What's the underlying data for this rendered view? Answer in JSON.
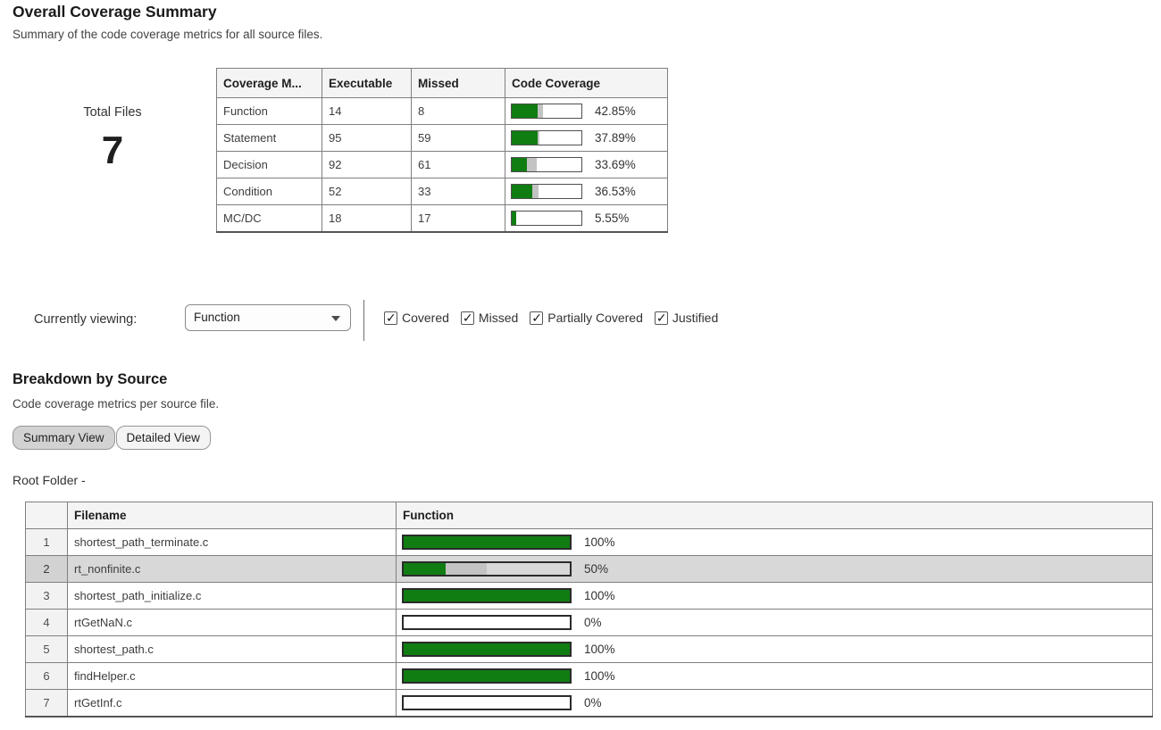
{
  "overall": {
    "title": "Overall Coverage Summary",
    "subtitle": "Summary of the code coverage metrics for all source files.",
    "total_files_label": "Total Files",
    "total_files_value": "7",
    "table": {
      "headers": [
        "Coverage M...",
        "Executable",
        "Missed",
        "Code Coverage"
      ],
      "rows": [
        {
          "metric": "Function",
          "executable": "14",
          "missed": "8",
          "pct_label": "42.85%",
          "green_pct": 37,
          "gray_pct": 8
        },
        {
          "metric": "Statement",
          "executable": "95",
          "missed": "59",
          "pct_label": "37.89%",
          "green_pct": 37,
          "gray_pct": 3
        },
        {
          "metric": "Decision",
          "executable": "92",
          "missed": "61",
          "pct_label": "33.69%",
          "green_pct": 22,
          "gray_pct": 14
        },
        {
          "metric": "Condition",
          "executable": "52",
          "missed": "33",
          "pct_label": "36.53%",
          "green_pct": 30,
          "gray_pct": 9
        },
        {
          "metric": "MC/DC",
          "executable": "18",
          "missed": "17",
          "pct_label": "5.55%",
          "green_pct": 6,
          "gray_pct": 0
        }
      ]
    }
  },
  "filter_bar": {
    "label": "Currently viewing:",
    "dropdown_value": "Function",
    "checkboxes": [
      {
        "label": "Covered",
        "checked": true
      },
      {
        "label": "Missed",
        "checked": true
      },
      {
        "label": "Partially Covered",
        "checked": true
      },
      {
        "label": "Justified",
        "checked": true
      }
    ]
  },
  "breakdown": {
    "title": "Breakdown by Source",
    "subtitle": "Code coverage metrics per source file.",
    "buttons": [
      {
        "label": "Summary View",
        "active": true
      },
      {
        "label": "Detailed View",
        "active": false
      }
    ],
    "root_folder_label": "Root Folder -",
    "table": {
      "headers": [
        "",
        "Filename",
        "Function"
      ],
      "rows": [
        {
          "num": "1",
          "filename": "shortest_path_terminate.c",
          "pct_label": "100%",
          "green_pct": 100,
          "gray_pct": 0,
          "highlighted": false
        },
        {
          "num": "2",
          "filename": "rt_nonfinite.c",
          "pct_label": "50%",
          "green_pct": 25,
          "gray_pct": 25,
          "highlighted": true
        },
        {
          "num": "3",
          "filename": "shortest_path_initialize.c",
          "pct_label": "100%",
          "green_pct": 100,
          "gray_pct": 0,
          "highlighted": false
        },
        {
          "num": "4",
          "filename": "rtGetNaN.c",
          "pct_label": "0%",
          "green_pct": 0,
          "gray_pct": 0,
          "highlighted": false
        },
        {
          "num": "5",
          "filename": "shortest_path.c",
          "pct_label": "100%",
          "green_pct": 100,
          "gray_pct": 0,
          "highlighted": false
        },
        {
          "num": "6",
          "filename": "findHelper.c",
          "pct_label": "100%",
          "green_pct": 100,
          "gray_pct": 0,
          "highlighted": false
        },
        {
          "num": "7",
          "filename": "rtGetInf.c",
          "pct_label": "0%",
          "green_pct": 0,
          "gray_pct": 0,
          "highlighted": false
        }
      ]
    }
  },
  "colors": {
    "covered_green": "#107d12",
    "partial_gray": "#c3c3c3",
    "row_highlight": "#d8d8d8"
  },
  "chart_data": [
    {
      "type": "bar",
      "title": "Overall Coverage Summary",
      "categories": [
        "Function",
        "Statement",
        "Decision",
        "Condition",
        "MC/DC"
      ],
      "series": [
        {
          "name": "Executable",
          "values": [
            14,
            95,
            92,
            52,
            18
          ]
        },
        {
          "name": "Missed",
          "values": [
            8,
            59,
            61,
            33,
            17
          ]
        },
        {
          "name": "Code Coverage %",
          "values": [
            42.85,
            37.89,
            33.69,
            36.53,
            5.55
          ]
        }
      ],
      "xlim": [
        0,
        100
      ]
    },
    {
      "type": "bar",
      "title": "Breakdown by Source - Function Coverage",
      "categories": [
        "shortest_path_terminate.c",
        "rt_nonfinite.c",
        "shortest_path_initialize.c",
        "rtGetNaN.c",
        "shortest_path.c",
        "findHelper.c",
        "rtGetInf.c"
      ],
      "values": [
        100,
        50,
        100,
        0,
        100,
        100,
        0
      ],
      "xlim": [
        0,
        100
      ]
    }
  ]
}
